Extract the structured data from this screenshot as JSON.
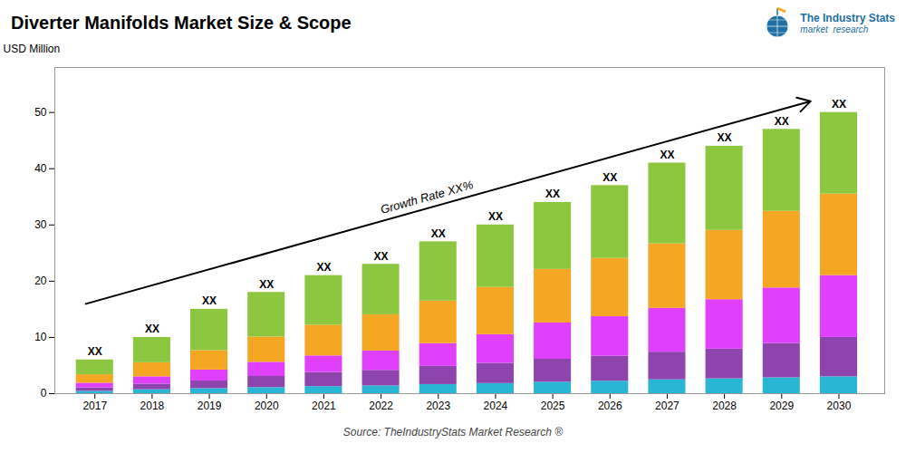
{
  "chart_data": {
    "type": "bar",
    "stacked": true,
    "title": "Diverter Manifolds Market Size & Scope",
    "ylabel": "USD Million",
    "x": [
      2017,
      2018,
      2019,
      2020,
      2021,
      2022,
      2023,
      2024,
      2025,
      2026,
      2027,
      2028,
      2029,
      2030
    ],
    "xlim": [
      2016.3,
      2030.8
    ],
    "xticks": [
      2017,
      2018,
      2019,
      2020,
      2021,
      2022,
      2023,
      2024,
      2025,
      2026,
      2027,
      2028,
      2029,
      2030
    ],
    "ylim": [
      0,
      58
    ],
    "yticks": [
      0,
      10,
      20,
      30,
      40,
      50
    ],
    "grid": false,
    "series": [
      {
        "color": "#29b6d4",
        "values": [
          0.42,
          0.7,
          0.9,
          1.08,
          1.26,
          1.38,
          1.62,
          1.8,
          2.04,
          2.22,
          2.46,
          2.64,
          2.82,
          3.0
        ]
      },
      {
        "color": "#8e44ad",
        "values": [
          0.6,
          1.0,
          1.35,
          1.98,
          2.52,
          2.76,
          3.24,
          3.6,
          4.08,
          4.44,
          4.92,
          5.28,
          6.11,
          7.0
        ]
      },
      {
        "color": "#e040fb",
        "values": [
          0.84,
          1.3,
          1.95,
          2.52,
          2.94,
          3.45,
          4.05,
          5.1,
          6.46,
          7.03,
          7.79,
          8.8,
          9.87,
          11.0
        ]
      },
      {
        "color": "#f5a623",
        "values": [
          1.5,
          2.5,
          3.45,
          4.5,
          5.46,
          6.44,
          7.56,
          8.4,
          9.52,
          10.36,
          11.48,
          12.32,
          13.63,
          14.5
        ]
      },
      {
        "color": "#8dc63f",
        "values": [
          2.64,
          4.5,
          7.35,
          7.92,
          8.82,
          8.97,
          10.53,
          11.1,
          11.9,
          12.95,
          14.35,
          14.96,
          14.57,
          14.5
        ]
      }
    ],
    "stack_labels": [
      "XX",
      "XX",
      "XX",
      "XX",
      "XX",
      "XX",
      "XX",
      "XX",
      "XX",
      "XX",
      "XX",
      "XX",
      "XX",
      "XX"
    ],
    "annotations": [
      {
        "type": "arrow",
        "x": [
          2017,
          2030
        ],
        "y": [
          15,
          52
        ]
      },
      {
        "text": "Growth Rate XX%",
        "x": 2022.8,
        "y": 32
      }
    ],
    "source": "Source: TheIndustryStats Market Research ®",
    "logo_texts": [
      "The Industry Stats",
      "market  research"
    ]
  }
}
